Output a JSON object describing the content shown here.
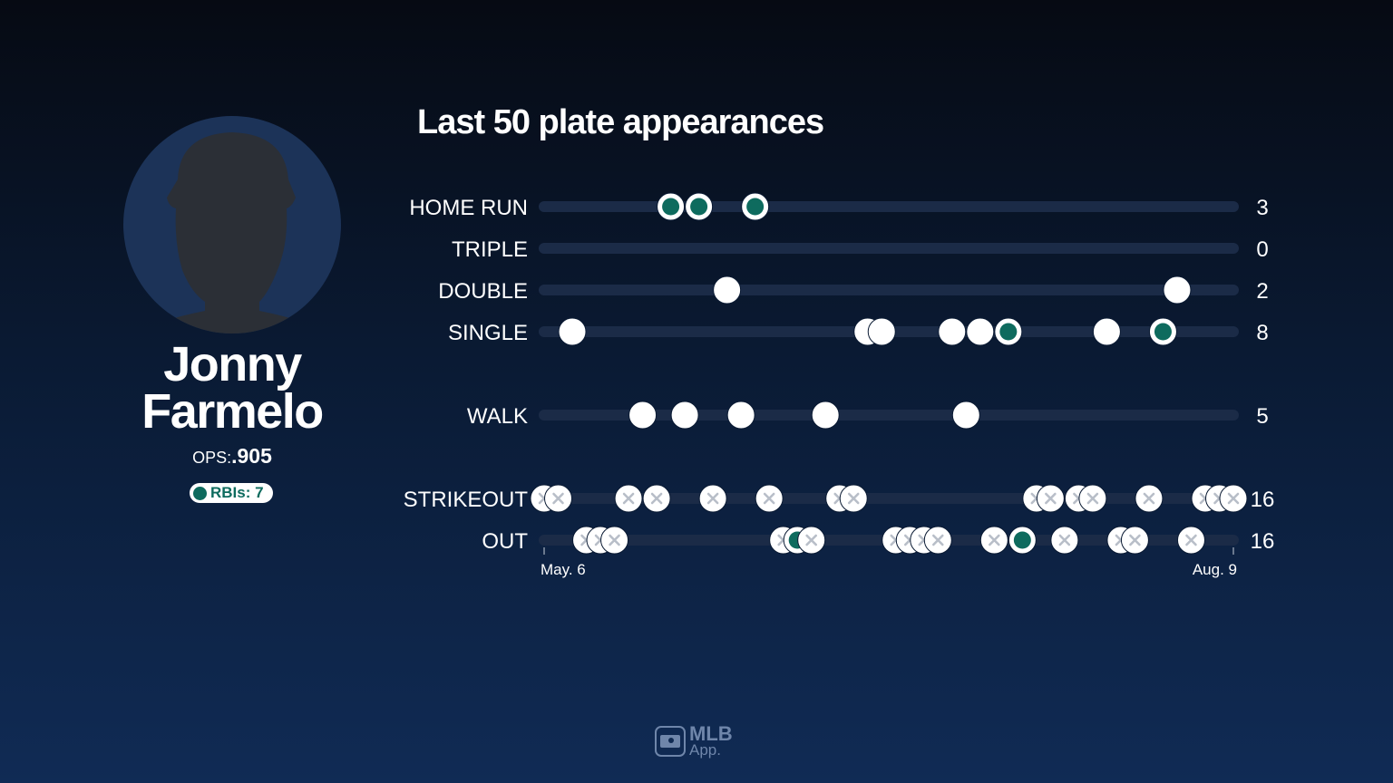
{
  "player": {
    "first_name": "Jonny",
    "last_name": "Farmelo",
    "ops_label": "OPS:",
    "ops_value": ".905",
    "rbi_label": "RBIs: 7"
  },
  "logo": {
    "line1": "MLB",
    "line2": "App."
  },
  "colors": {
    "rbi": "#0e6b5e",
    "track": "#1b2b47",
    "dot": "#ffffff",
    "x_mark": "#b8bec8"
  },
  "chart_data": {
    "type": "scatter",
    "title": "Last 50 plate appearances",
    "x_range": [
      1,
      50
    ],
    "x_tick_labels": [
      "May. 6",
      "Aug. 9"
    ],
    "legend": "RBI plate appearances shown as green dots",
    "rows": [
      {
        "label": "HOME RUN",
        "count": "3",
        "pa": [
          10,
          12,
          16
        ],
        "marker": "dot"
      },
      {
        "label": "TRIPLE",
        "count": "0",
        "pa": [],
        "marker": "dot"
      },
      {
        "label": "DOUBLE",
        "count": "2",
        "pa": [
          14,
          46
        ],
        "marker": "dot"
      },
      {
        "label": "SINGLE",
        "count": "8",
        "pa": [
          3,
          24,
          25,
          30,
          32,
          34,
          41,
          45
        ],
        "marker": "dot"
      },
      {
        "label": "WALK",
        "count": "5",
        "pa": [
          8,
          11,
          15,
          21,
          31
        ],
        "marker": "dot",
        "gap_before": true
      },
      {
        "label": "STRIKEOUT",
        "count": "16",
        "pa": [
          1,
          2,
          7,
          9,
          13,
          17,
          22,
          23,
          36,
          37,
          39,
          40,
          44,
          48,
          49,
          50
        ],
        "marker": "x",
        "gap_before": true
      },
      {
        "label": "OUT",
        "count": "16",
        "pa": [
          4,
          5,
          6,
          18,
          19,
          20,
          26,
          27,
          28,
          29,
          33,
          35,
          38,
          42,
          43,
          47
        ],
        "marker": "x"
      }
    ],
    "rbi_pa": [
      10,
      12,
      16,
      19,
      34,
      35,
      45
    ]
  }
}
